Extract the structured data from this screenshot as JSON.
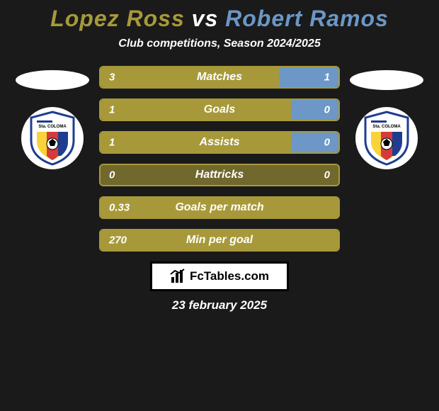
{
  "title": {
    "player_left": "Lopez Ross",
    "vs": "vs",
    "player_right": "Robert Ramos",
    "left_color": "#a7993a",
    "right_color": "#6c97c6",
    "fontsize": 32
  },
  "subtitle": "Club competitions, Season 2024/2025",
  "colors": {
    "background": "#1a1a1a",
    "text": "#ffffff",
    "left_primary": "#a7993a",
    "right_primary": "#6c97c6",
    "bar_border": "#a7993a",
    "crest_bg": "#ffffff",
    "ellipse_bg": "#ffffff"
  },
  "crest": {
    "text": "Sta. COLOMA",
    "stripe_yellow": "#f8d43a",
    "stripe_red": "#d63a3a",
    "stripe_blue": "#1f3d8f",
    "outline": "#1f3d8f"
  },
  "bars": [
    {
      "label": "Matches",
      "left": "3",
      "right": "1",
      "left_pct": 75,
      "right_pct": 25
    },
    {
      "label": "Goals",
      "left": "1",
      "right": "0",
      "left_pct": 80,
      "right_pct": 20
    },
    {
      "label": "Assists",
      "left": "1",
      "right": "0",
      "left_pct": 80,
      "right_pct": 20
    },
    {
      "label": "Hattricks",
      "left": "0",
      "right": "0",
      "left_pct": 100,
      "right_pct": 0,
      "muted": true
    },
    {
      "label": "Goals per match",
      "left": "0.33",
      "right": "",
      "left_pct": 100,
      "right_pct": 0
    },
    {
      "label": "Min per goal",
      "left": "270",
      "right": "",
      "left_pct": 100,
      "right_pct": 0
    }
  ],
  "bar_style": {
    "height": 32,
    "border_radius": 6,
    "border_width": 2,
    "label_fontsize": 16,
    "value_fontsize": 15,
    "muted_opacity": 0.62
  },
  "branding": {
    "label": "FcTables.com"
  },
  "date": "23 february 2025"
}
